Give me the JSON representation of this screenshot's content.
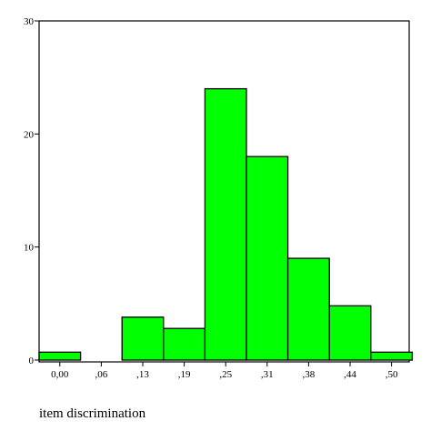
{
  "chart_data": {
    "type": "bar",
    "title": "",
    "xlabel": "item discrimination",
    "ylabel": "",
    "ylim": [
      0,
      30
    ],
    "yticks": [
      0,
      10,
      20,
      30
    ],
    "xticks": [
      "0,00",
      ",06",
      ",13",
      ",19",
      ",25",
      ",31",
      ",38",
      ",44",
      ",50"
    ],
    "values": [
      0.7,
      0,
      3.8,
      2.8,
      24,
      18,
      9,
      4.8,
      0.7
    ],
    "bar_color": "#00ff00",
    "frame_color": "#000000",
    "grid": false,
    "legend": "none"
  }
}
